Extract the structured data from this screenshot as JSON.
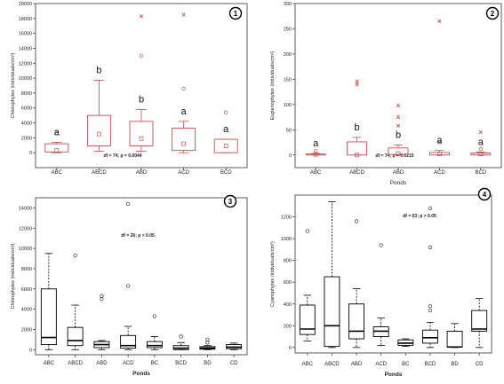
{
  "chart_data": [
    {
      "panel": "1",
      "type": "boxplot",
      "ylabel": "Chlorophytes (individuals/cm²)",
      "xlabel": "",
      "ylim": [
        -2000,
        20000
      ],
      "yticks": [
        0,
        2000,
        4000,
        6000,
        8000,
        10000,
        12000,
        14000,
        16000,
        18000,
        20000
      ],
      "annotation": "df = 74; p = 0.0044",
      "color": "#c0504d",
      "boxes": [
        {
          "category": "ABC",
          "q1": 100,
          "median": 700,
          "q3": 1200,
          "wmin": 0,
          "wmax": 1400,
          "mean": 300,
          "outliers": [
            2600
          ],
          "extremes": [],
          "letter": "a"
        },
        {
          "category": "ABCD",
          "q1": 900,
          "median": 2200,
          "q3": 5000,
          "wmin": 200,
          "wmax": 9700,
          "mean": 2500,
          "outliers": [],
          "extremes": [],
          "letter": "b"
        },
        {
          "category": "ABD",
          "q1": 900,
          "median": 2100,
          "q3": 4200,
          "wmin": 200,
          "wmax": 5800,
          "mean": 1900,
          "outliers": [
            13000
          ],
          "extremes": [
            18300
          ],
          "letter": "b"
        },
        {
          "category": "ACD",
          "q1": 300,
          "median": 1200,
          "q3": 3300,
          "wmin": 0,
          "wmax": 4200,
          "mean": 1200,
          "outliers": [
            8600
          ],
          "extremes": [
            18500
          ],
          "letter": "a"
        },
        {
          "category": "BCD",
          "q1": 0,
          "median": 900,
          "q3": 1800,
          "wmin": 0,
          "wmax": 1800,
          "mean": 900,
          "outliers": [
            5400
          ],
          "extremes": [],
          "letter": "a"
        }
      ]
    },
    {
      "panel": "2",
      "type": "boxplot",
      "ylabel": "Euglenophytes (individuals/cm²)",
      "xlabel": "Ponds",
      "ylim": [
        -25,
        300
      ],
      "yticks": [
        0,
        50,
        100,
        150,
        200,
        250,
        300
      ],
      "annotation": "df = 74; p = 0.0215",
      "color": "#c0504d",
      "boxes": [
        {
          "category": "ABC",
          "q1": 0,
          "median": 0,
          "q3": 2,
          "wmin": 0,
          "wmax": 3,
          "mean": 1,
          "outliers": [
            8
          ],
          "extremes": [],
          "letter": "a"
        },
        {
          "category": "ABCD",
          "q1": 0,
          "median": 5,
          "q3": 26,
          "wmin": 0,
          "wmax": 35,
          "mean": 0,
          "outliers": [],
          "extremes": [
            140,
            146
          ],
          "letter": "b"
        },
        {
          "category": "ABD",
          "q1": 1,
          "median": 5,
          "q3": 14,
          "wmin": 0,
          "wmax": 20,
          "mean": 3,
          "outliers": [],
          "extremes": [
            58,
            75,
            98
          ],
          "letter": "b"
        },
        {
          "category": "ACD",
          "q1": 0,
          "median": 2,
          "q3": 5,
          "wmin": 0,
          "wmax": 9,
          "mean": 2,
          "outliers": [],
          "extremes": [
            25,
            265
          ],
          "letter": "a"
        },
        {
          "category": "BCD",
          "q1": 0,
          "median": 1,
          "q3": 4,
          "wmin": 0,
          "wmax": 6,
          "mean": 2,
          "outliers": [
            12
          ],
          "extremes": [
            45
          ],
          "letter": "a"
        }
      ]
    },
    {
      "panel": "3",
      "type": "boxplot",
      "ylabel": "Chlorophytes (individuals/cm²)",
      "xlabel": "Ponds",
      "ylim": [
        -500,
        15000
      ],
      "yticks": [
        0,
        2000,
        4000,
        6000,
        8000,
        10000,
        12000,
        14000
      ],
      "annotation": "df = 26; p > 0.05",
      "color": "#000000",
      "boxes": [
        {
          "category": "ABC",
          "q1": 500,
          "median": 1200,
          "q3": 6000,
          "wmin": 0,
          "wmax": 9500,
          "outliers": []
        },
        {
          "category": "ABCD",
          "q1": 400,
          "median": 900,
          "q3": 2200,
          "wmin": 0,
          "wmax": 4400,
          "outliers": [
            9300
          ]
        },
        {
          "category": "ABD",
          "q1": 200,
          "median": 500,
          "q3": 800,
          "wmin": 0,
          "wmax": 900,
          "outliers": [
            5000,
            5300
          ]
        },
        {
          "category": "ACD",
          "q1": 150,
          "median": 400,
          "q3": 1400,
          "wmin": 0,
          "wmax": 2300,
          "outliers": [
            6300,
            14400
          ]
        },
        {
          "category": "BC",
          "q1": 200,
          "median": 400,
          "q3": 800,
          "wmin": 0,
          "wmax": 1300,
          "outliers": [
            3300
          ]
        },
        {
          "category": "BCD",
          "q1": 0,
          "median": 150,
          "q3": 400,
          "wmin": 0,
          "wmax": 700,
          "outliers": [
            1300
          ]
        },
        {
          "category": "BD",
          "q1": 50,
          "median": 150,
          "q3": 300,
          "wmin": 0,
          "wmax": 400,
          "outliers": [
            700,
            1000
          ]
        },
        {
          "category": "CD",
          "q1": 100,
          "median": 250,
          "q3": 500,
          "wmin": 0,
          "wmax": 650,
          "outliers": []
        }
      ]
    },
    {
      "panel": "4",
      "type": "boxplot",
      "ylabel": "Cyanophytes (individuals/cm²)",
      "xlabel": "Ponds",
      "ylim": [
        -50,
        1400
      ],
      "yticks": [
        0,
        200,
        400,
        600,
        800,
        1000,
        1200
      ],
      "annotation": "df = 63; p > 0.05",
      "color": "#000000",
      "boxes": [
        {
          "category": "ABC",
          "q1": 120,
          "median": 170,
          "q3": 390,
          "wmin": 60,
          "wmax": 480,
          "outliers": [
            1070
          ]
        },
        {
          "category": "ABCD",
          "q1": 10,
          "median": 200,
          "q3": 650,
          "wmin": 0,
          "wmax": 1340,
          "outliers": []
        },
        {
          "category": "ABD",
          "q1": 80,
          "median": 150,
          "q3": 400,
          "wmin": 0,
          "wmax": 540,
          "outliers": [
            1160
          ]
        },
        {
          "category": "ACD",
          "q1": 100,
          "median": 150,
          "q3": 190,
          "wmin": 20,
          "wmax": 270,
          "outliers": [
            940
          ]
        },
        {
          "category": "BC",
          "q1": 20,
          "median": 40,
          "q3": 70,
          "wmin": 10,
          "wmax": 80,
          "outliers": []
        },
        {
          "category": "BCD",
          "q1": 40,
          "median": 90,
          "q3": 160,
          "wmin": 0,
          "wmax": 230,
          "outliers": [
            340,
            380,
            920,
            1280
          ]
        },
        {
          "category": "BD",
          "q1": 5,
          "median": 5,
          "q3": 150,
          "wmin": 0,
          "wmax": 220,
          "outliers": []
        },
        {
          "category": "CD",
          "q1": 150,
          "median": 170,
          "q3": 340,
          "wmin": 0,
          "wmax": 450,
          "outliers": []
        }
      ]
    }
  ]
}
